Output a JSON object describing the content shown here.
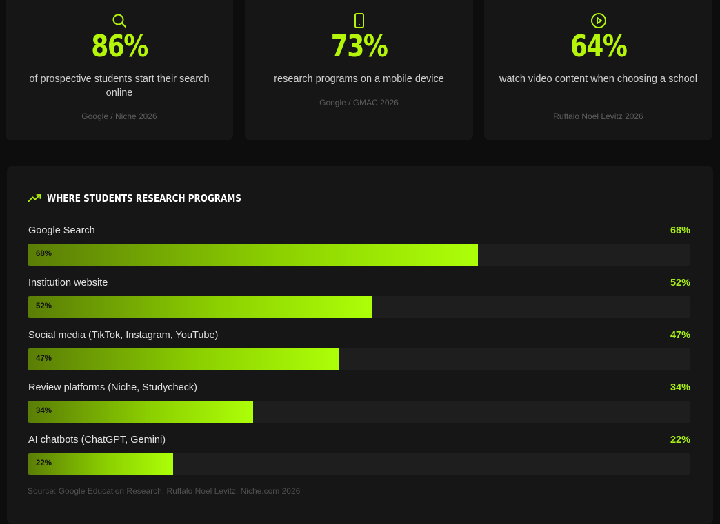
{
  "stats": [
    {
      "icon": "search-icon",
      "value": "86%",
      "description": "of prospective students start their search online",
      "source": "Google / Niche 2026"
    },
    {
      "icon": "mobile-device-icon",
      "value": "73%",
      "description": "research programs on a mobile device",
      "source": "Google / GMAC 2026"
    },
    {
      "icon": "play-circle-icon",
      "value": "64%",
      "description": "watch video content when choosing a school",
      "source": "Ruffalo Noel Levitz 2026"
    }
  ],
  "research": {
    "title": "WHERE STUDENTS RESEARCH PROGRAMS",
    "title_icon": "trending-up-icon",
    "source": "Source: Google Education Research, Ruffalo Noel Levitz, Niche.com 2026"
  },
  "chart_data": {
    "type": "bar",
    "orientation": "horizontal",
    "title": "WHERE STUDENTS RESEARCH PROGRAMS",
    "categories": [
      "Google Search",
      "Institution website",
      "Social media (TikTok, Instagram, YouTube)",
      "Review platforms (Niche, Studycheck)",
      "AI chatbots (ChatGPT, Gemini)"
    ],
    "values": [
      68,
      52,
      47,
      34,
      22
    ],
    "value_labels": [
      "68%",
      "52%",
      "47%",
      "34%",
      "22%"
    ],
    "xlim": [
      0,
      100
    ],
    "unit": "%"
  },
  "colors": {
    "accent": "#b4f50a",
    "background": "#0d0d0d",
    "card": "#161616",
    "track": "#1e1e1e"
  }
}
